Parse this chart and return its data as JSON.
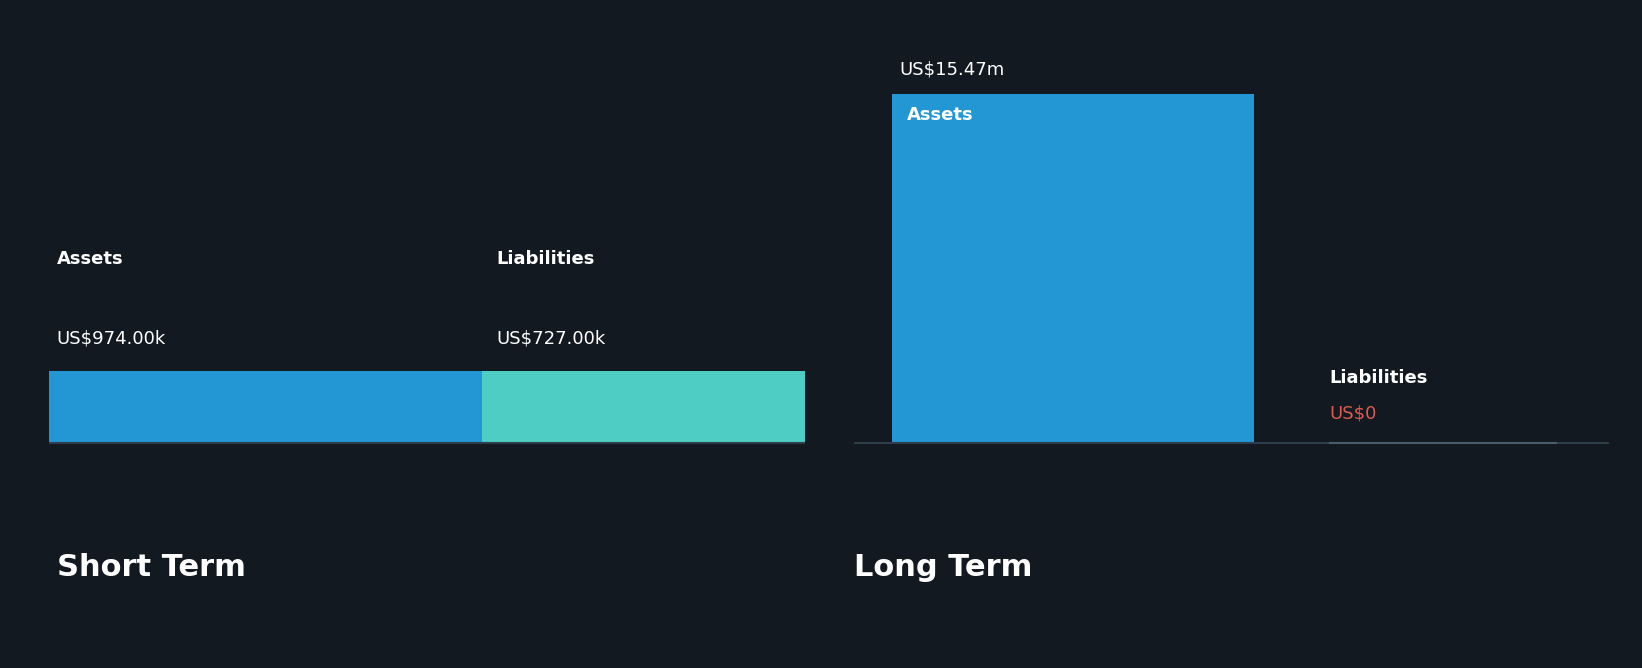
{
  "background_color": "#131920",
  "short_term": {
    "assets_value": 974000,
    "liabilities_value": 727000,
    "assets_label": "Assets",
    "liabilities_label": "Liabilities",
    "assets_display": "US$974.00k",
    "liabilities_display": "US$727.00k",
    "assets_color": "#2396d4",
    "liabilities_color": "#4ecdc4",
    "section_label": "Short Term"
  },
  "long_term": {
    "assets_value": 15470000,
    "liabilities_value": 0,
    "assets_label": "Assets",
    "liabilities_label": "Liabilities",
    "assets_display": "US$15.47m",
    "liabilities_display": "US$0",
    "assets_color": "#2396d4",
    "liabilities_color_text": "#e05a4e",
    "section_label": "Long Term"
  },
  "label_fontsize": 13,
  "value_fontsize": 13,
  "section_fontsize": 22,
  "text_color": "#ffffff",
  "baseline_color": "#2e3d4a"
}
